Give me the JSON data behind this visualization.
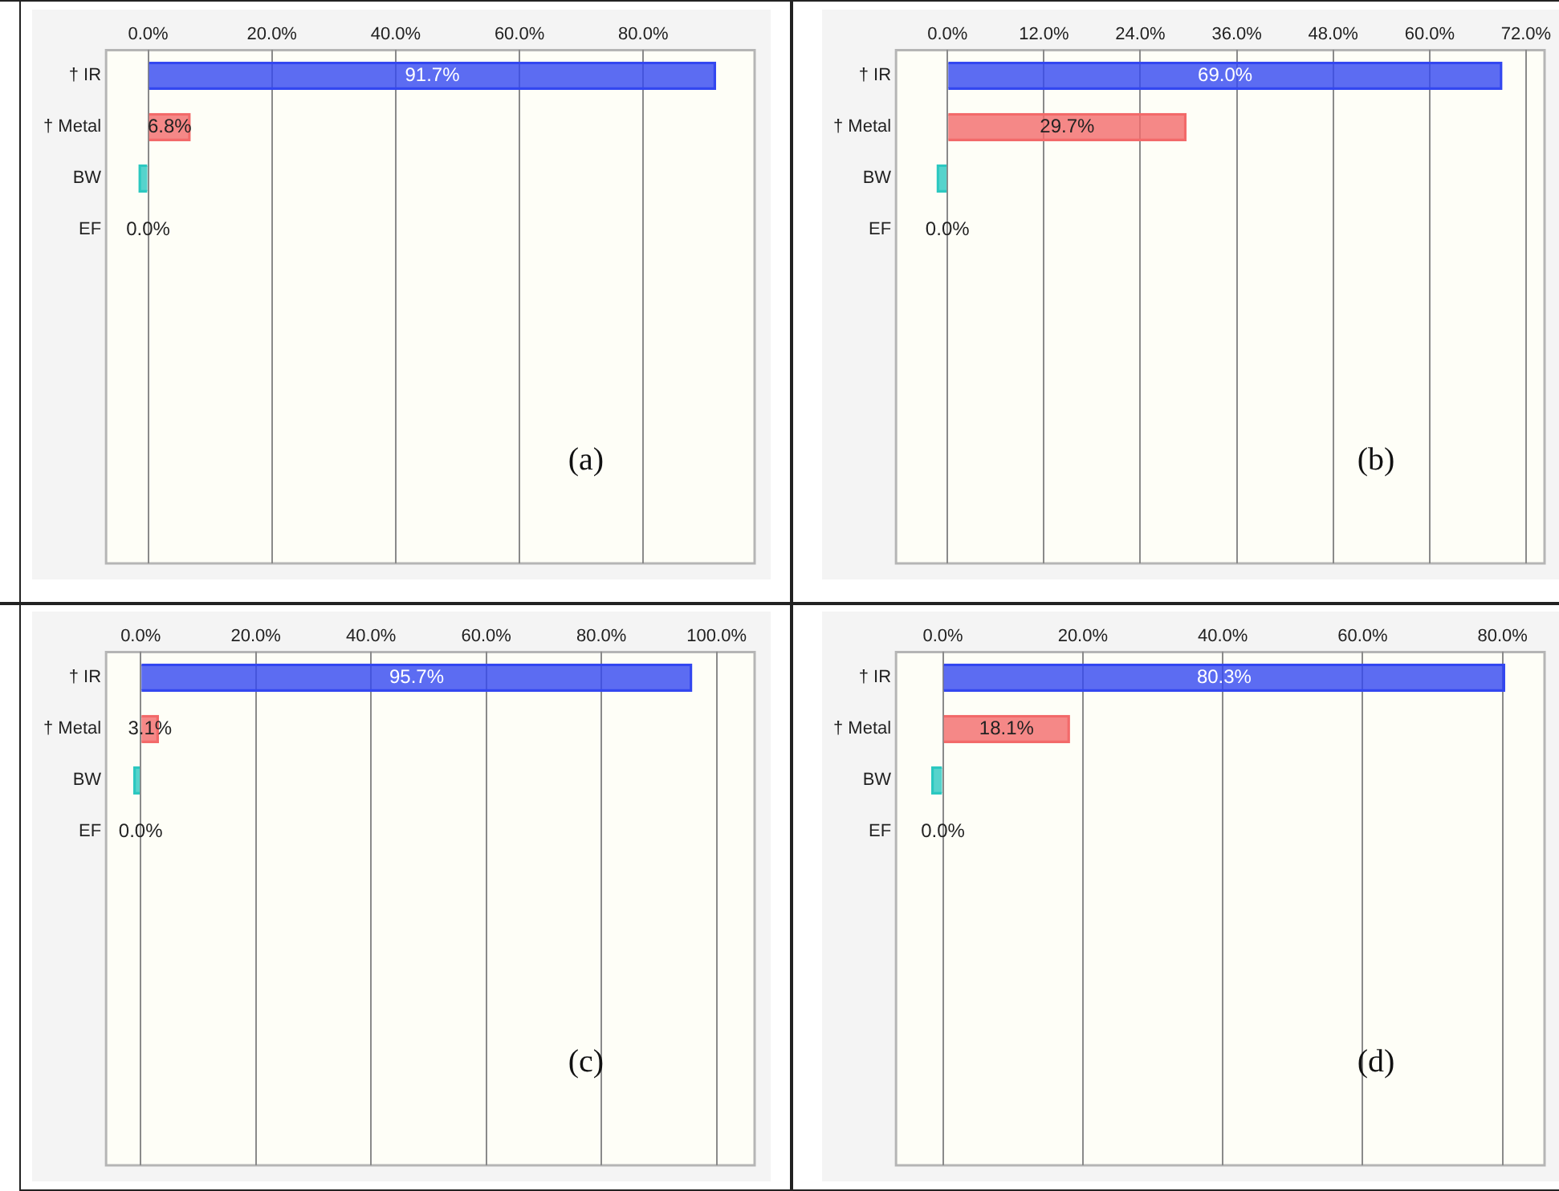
{
  "chart_data": [
    {
      "type": "bar",
      "orientation": "horizontal",
      "categories": [
        "† IR",
        "† Metal",
        "BW",
        "EF"
      ],
      "values": [
        91.7,
        6.8,
        1.5,
        0.0
      ],
      "base": [
        0,
        0,
        -1.5,
        0
      ],
      "colors": [
        "#3347f0",
        "#f26a6a",
        "#2cc8c0",
        "#e8e040"
      ],
      "value_labels": [
        "91.7%",
        "6.8%",
        null,
        "0.0%"
      ],
      "xlim": [
        -6.8,
        98
      ],
      "xticks": [
        {
          "value": 0,
          "label": "0.0%"
        },
        {
          "value": 20,
          "label": "20.0%"
        },
        {
          "value": 40,
          "label": "40.0%"
        },
        {
          "value": 60,
          "label": "60.0%"
        },
        {
          "value": 80,
          "label": "80.0%"
        }
      ],
      "grid": "x",
      "annotations": [
        "(a)"
      ]
    },
    {
      "type": "bar",
      "orientation": "horizontal",
      "categories": [
        "† IR",
        "† Metal",
        "BW",
        "EF"
      ],
      "values": [
        69.0,
        29.7,
        1.3,
        0.0
      ],
      "base": [
        0,
        0,
        -1.3,
        0
      ],
      "colors": [
        "#3347f0",
        "#f26a6a",
        "#2cc8c0",
        "#e8e040"
      ],
      "value_labels": [
        "69.0%",
        "29.7%",
        null,
        "0.0%"
      ],
      "xlim": [
        -6.4,
        74.3
      ],
      "xticks": [
        {
          "value": 0,
          "label": "0.0%"
        },
        {
          "value": 12,
          "label": "12.0%"
        },
        {
          "value": 24,
          "label": "24.0%"
        },
        {
          "value": 36,
          "label": "36.0%"
        },
        {
          "value": 48,
          "label": "48.0%"
        },
        {
          "value": 60,
          "label": "60.0%"
        },
        {
          "value": 72,
          "label": "72.0%"
        }
      ],
      "grid": "x",
      "annotations": [
        "(b)"
      ]
    },
    {
      "type": "bar",
      "orientation": "horizontal",
      "categories": [
        "† IR",
        "† Metal",
        "BW",
        "EF"
      ],
      "values": [
        95.7,
        3.1,
        1.2,
        0.0
      ],
      "base": [
        0,
        0,
        -1.2,
        0
      ],
      "colors": [
        "#3347f0",
        "#f26a6a",
        "#2cc8c0",
        "#e8e040"
      ],
      "value_labels": [
        "95.7%",
        "3.1%",
        null,
        "0.0%"
      ],
      "xlim": [
        -6,
        106.6
      ],
      "xticks": [
        {
          "value": 0,
          "label": "0.0%"
        },
        {
          "value": 20,
          "label": "20.0%"
        },
        {
          "value": 40,
          "label": "40.0%"
        },
        {
          "value": 60,
          "label": "60.0%"
        },
        {
          "value": 80,
          "label": "80.0%"
        },
        {
          "value": 100,
          "label": "100.0%"
        }
      ],
      "grid": "x",
      "annotations": [
        "(c)"
      ]
    },
    {
      "type": "bar",
      "orientation": "horizontal",
      "categories": [
        "† IR",
        "† Metal",
        "BW",
        "EF"
      ],
      "values": [
        80.3,
        18.1,
        1.6,
        0.0
      ],
      "base": [
        0,
        0,
        -1.6,
        0
      ],
      "colors": [
        "#3347f0",
        "#f26a6a",
        "#2cc8c0",
        "#e8e040"
      ],
      "value_labels": [
        "80.3%",
        "18.1%",
        null,
        "0.0%"
      ],
      "xlim": [
        -6.7,
        86
      ],
      "xticks": [
        {
          "value": 0,
          "label": "0.0%"
        },
        {
          "value": 20,
          "label": "20.0%"
        },
        {
          "value": 40,
          "label": "40.0%"
        },
        {
          "value": 60,
          "label": "60.0%"
        },
        {
          "value": 80,
          "label": "80.0%"
        }
      ],
      "grid": "x",
      "annotations": [
        "(d)"
      ]
    }
  ]
}
